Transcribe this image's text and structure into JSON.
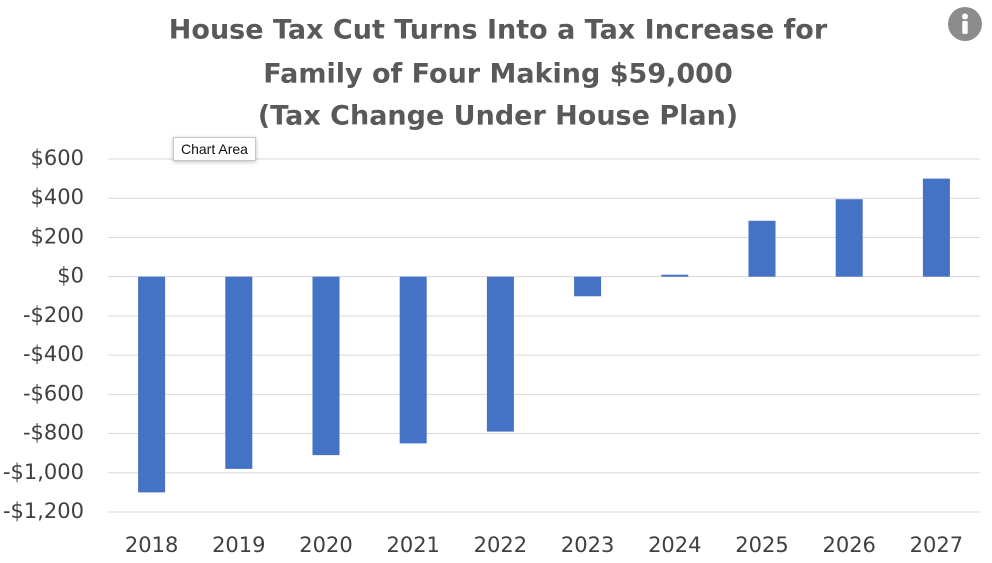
{
  "chart_data": {
    "type": "bar",
    "title": [
      "House Tax Cut Turns Into a Tax Increase for",
      "Family of Four Making $59,000",
      "(Tax Change Under House Plan)"
    ],
    "categories": [
      "2018",
      "2019",
      "2020",
      "2021",
      "2022",
      "2023",
      "2024",
      "2025",
      "2026",
      "2027"
    ],
    "values": [
      -1100,
      -980,
      -910,
      -850,
      -790,
      -100,
      10,
      285,
      395,
      500
    ],
    "ylim": [
      -1200,
      600
    ],
    "yticks": [
      600,
      400,
      200,
      0,
      -200,
      -400,
      -600,
      -800,
      -1000,
      -1200
    ],
    "ytick_labels": [
      "$600",
      "$400",
      "$200",
      "$0",
      "-$200",
      "-$400",
      "-$600",
      "-$800",
      "-$1,000",
      "-$1,200"
    ],
    "xlabel": "",
    "ylabel": "",
    "grid": true,
    "bar_color": "#4472c4"
  },
  "tooltip": {
    "text": "Chart Area"
  },
  "info_button": {
    "icon": "info-icon"
  }
}
